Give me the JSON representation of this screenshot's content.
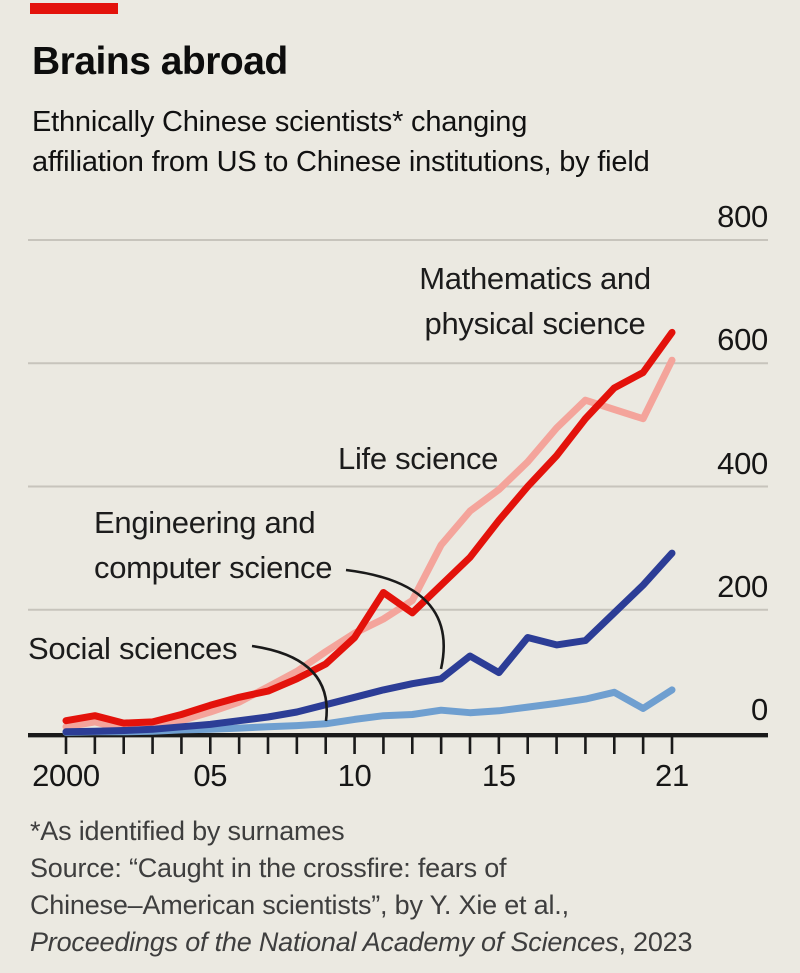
{
  "header": {
    "title": "Brains abroad",
    "subtitle_line1": "Ethnically Chinese scientists* changing",
    "subtitle_line2": "affiliation from US to Chinese institutions, by field"
  },
  "chart_data": {
    "type": "line",
    "x": [
      2000,
      2001,
      2002,
      2003,
      2004,
      2005,
      2006,
      2007,
      2008,
      2009,
      2010,
      2011,
      2012,
      2013,
      2014,
      2015,
      2016,
      2017,
      2018,
      2019,
      2020,
      2021
    ],
    "series": [
      {
        "name": "Social sciences",
        "color": "#6f9fd0",
        "values": [
          1,
          2,
          2,
          3,
          5,
          6,
          8,
          10,
          12,
          15,
          22,
          28,
          30,
          37,
          33,
          36,
          42,
          48,
          55,
          66,
          40,
          70
        ]
      },
      {
        "name": "Life science",
        "color": "#f4a49b",
        "values": [
          10,
          18,
          6,
          8,
          20,
          34,
          50,
          75,
          100,
          132,
          162,
          185,
          215,
          305,
          360,
          395,
          440,
          495,
          540,
          525,
          510,
          605
        ]
      },
      {
        "name": "Engineering and computer science",
        "color": "#2c3d96",
        "values": [
          2,
          3,
          4,
          6,
          10,
          14,
          20,
          26,
          34,
          46,
          58,
          70,
          80,
          88,
          125,
          98,
          155,
          143,
          150,
          195,
          240,
          292
        ]
      },
      {
        "name": "Mathematics and physical science",
        "color": "#e3120b",
        "values": [
          20,
          28,
          16,
          18,
          30,
          45,
          58,
          68,
          88,
          112,
          155,
          228,
          195,
          240,
          285,
          345,
          400,
          450,
          510,
          560,
          585,
          650
        ]
      }
    ],
    "xlim": [
      2000,
      2021
    ],
    "ylim": [
      0,
      800
    ],
    "y_ticks": [
      0,
      200,
      400,
      600,
      800
    ],
    "x_tick_labels": [
      {
        "year": 2000,
        "label": "2000"
      },
      {
        "year": 2005,
        "label": "05"
      },
      {
        "year": 2010,
        "label": "10"
      },
      {
        "year": 2015,
        "label": "15"
      },
      {
        "year": 2021,
        "label": "21"
      }
    ],
    "grid": "horizontal gridlines, value labels on right, tick per year on x-axis",
    "legend_position": "direct line labels with pointer arcs"
  },
  "annotations": {
    "math_line1": "Mathematics and",
    "math_line2": "physical science",
    "life": "Life science",
    "eng_line1": "Engineering and",
    "eng_line2": "computer science",
    "social": "Social sciences"
  },
  "footer": {
    "footnote": "*As identified by surnames",
    "source_line1": "Source: “Caught in the crossfire: fears of",
    "source_line2": "Chinese–American scientists”, by Y. Xie et al.,",
    "source_italic": "Proceedings of the National Academy of Sciences",
    "source_suffix": ", 2023"
  },
  "colors": {
    "background": "#ebe9e1",
    "accent_red": "#e3120b",
    "gridline": "#c7c4bc",
    "axis": "#1a1a1a"
  }
}
